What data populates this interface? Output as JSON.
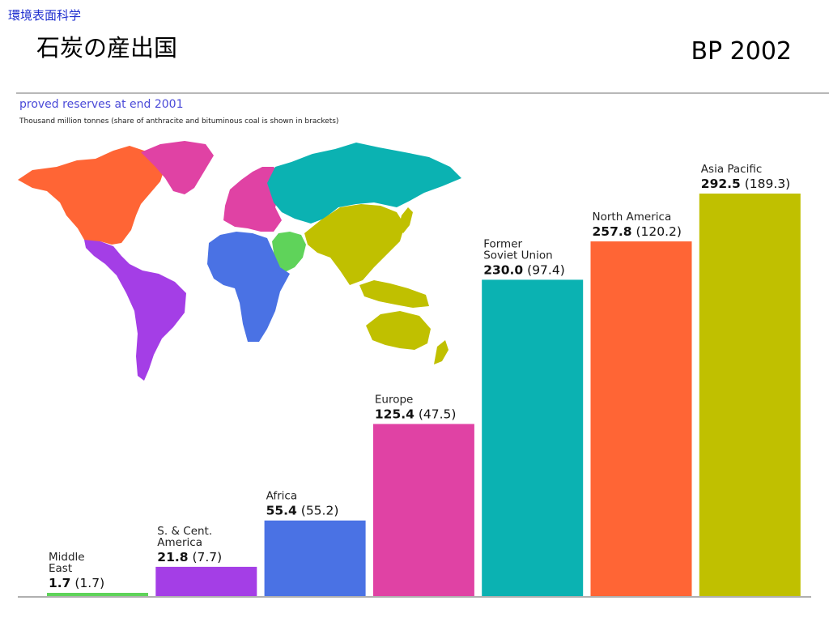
{
  "header": {
    "course": "環境表面科学",
    "title": "石炭の産出国",
    "source": "BP 2002"
  },
  "chart_data": {
    "type": "bar",
    "title": "proved reserves at end 2001",
    "subtitle": "Thousand million tonnes (share of anthracite and bituminous coal is shown in brackets)",
    "categories": [
      [
        "Middle",
        "East"
      ],
      [
        "S. & Cent.",
        "America"
      ],
      [
        "Africa"
      ],
      [
        "Europe"
      ],
      [
        "Former",
        "Soviet Union"
      ],
      [
        "North America"
      ],
      [
        "Asia Pacific"
      ]
    ],
    "values": [
      1.7,
      21.8,
      55.4,
      125.4,
      230.0,
      257.8,
      292.5
    ],
    "value_labels": [
      "1.7",
      "21.8",
      "55.4",
      "125.4",
      "230.0",
      "257.8",
      "292.5"
    ],
    "bracket_labels": [
      "(1.7)",
      "(7.7)",
      "(55.2)",
      "(47.5)",
      "(97.4)",
      "(120.2)",
      "(189.3)"
    ],
    "colors": [
      "#5fd35a",
      "#a43ee6",
      "#4a72e4",
      "#e042a4",
      "#0bb2b2",
      "#ff6535",
      "#c0c000"
    ],
    "grid": false,
    "legend": "none",
    "map": {
      "colors": {
        "north_america": "#ff6535",
        "greenland": "#e042a4",
        "europe": "#e042a4",
        "former_soviet_union": "#0bb2b2",
        "middle_east": "#5fd35a",
        "africa": "#4a72e4",
        "south_america": "#a43ee6",
        "asia_pacific": "#c0c000"
      }
    }
  }
}
